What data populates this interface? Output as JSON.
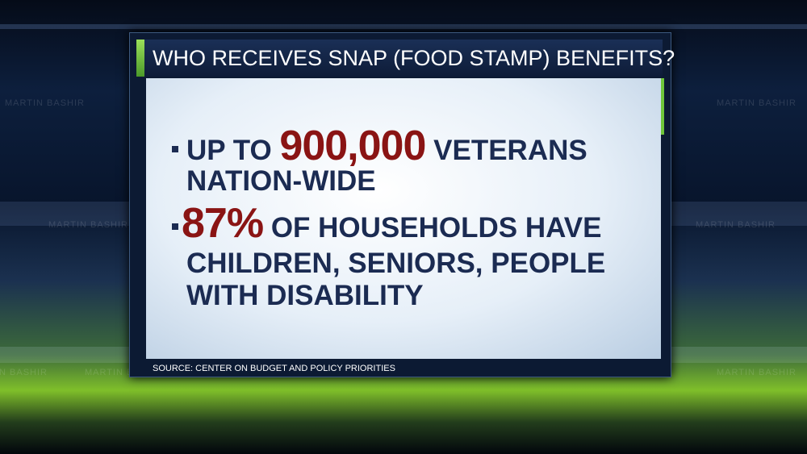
{
  "header": {
    "title": "WHO RECEIVES SNAP (FOOD STAMP) BENEFITS?"
  },
  "bullets": [
    {
      "before": "UP TO",
      "highlight": "900,000",
      "after": "VETERANS",
      "continuation": [
        "NATION-WIDE"
      ]
    },
    {
      "highlight": "87%",
      "after": "OF HOUSEHOLDS HAVE",
      "continuation": [
        "CHILDREN, SENIORS, PEOPLE",
        "WITH DISABILITY"
      ]
    }
  ],
  "source": "SOURCE: CENTER ON BUDGET AND POLICY PRIORITIES",
  "watermark": "MARTIN BASHIR"
}
